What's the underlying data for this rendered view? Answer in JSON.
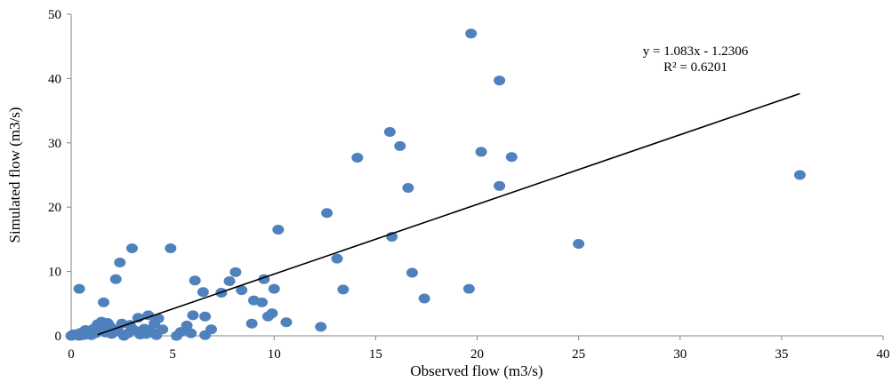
{
  "chart_data": {
    "type": "scatter",
    "xlabel": "Observed flow (m3/s)",
    "ylabel": "Simulated flow (m3/s)",
    "xlim": [
      0,
      40
    ],
    "ylim": [
      0,
      50
    ],
    "x_ticks": [
      "0",
      "5",
      "10",
      "15",
      "20",
      "25",
      "30",
      "35",
      "40"
    ],
    "y_ticks": [
      "0",
      "10",
      "20",
      "30",
      "40",
      "50"
    ],
    "grid": false,
    "marker_color": "#4f81bd",
    "trendline": {
      "slope": 1.083,
      "intercept": -1.2306,
      "x_range": [
        1.3,
        35.9
      ],
      "equation": "y = 1.083x - 1.2306",
      "r_squared": "R² = 0.6201",
      "color": "#000000"
    },
    "points": [
      [
        0.0,
        0.0
      ],
      [
        0.1,
        0.2
      ],
      [
        0.2,
        0.1
      ],
      [
        0.3,
        0.3
      ],
      [
        0.4,
        0.0
      ],
      [
        0.5,
        0.5
      ],
      [
        0.6,
        0.1
      ],
      [
        0.4,
        7.3
      ],
      [
        0.7,
        0.9
      ],
      [
        0.8,
        0.2
      ],
      [
        0.9,
        0.6
      ],
      [
        1.0,
        0.1
      ],
      [
        1.1,
        1.1
      ],
      [
        1.2,
        0.4
      ],
      [
        1.3,
        1.8
      ],
      [
        1.4,
        0.8
      ],
      [
        1.5,
        2.2
      ],
      [
        1.6,
        1.2
      ],
      [
        1.7,
        0.5
      ],
      [
        1.8,
        2.0
      ],
      [
        1.9,
        1.5
      ],
      [
        2.0,
        0.3
      ],
      [
        1.6,
        5.2
      ],
      [
        2.2,
        8.8
      ],
      [
        2.4,
        11.4
      ],
      [
        2.1,
        1.0
      ],
      [
        2.3,
        0.7
      ],
      [
        2.5,
        1.9
      ],
      [
        2.6,
        0.0
      ],
      [
        2.8,
        0.4
      ],
      [
        2.9,
        1.7
      ],
      [
        3.0,
        13.6
      ],
      [
        3.1,
        0.9
      ],
      [
        3.3,
        2.8
      ],
      [
        3.4,
        0.2
      ],
      [
        3.6,
        1.1
      ],
      [
        3.8,
        3.2
      ],
      [
        3.7,
        0.3
      ],
      [
        3.9,
        0.9
      ],
      [
        4.1,
        1.9
      ],
      [
        4.2,
        0.1
      ],
      [
        4.3,
        2.7
      ],
      [
        4.5,
        1.0
      ],
      [
        4.0,
        0.5
      ],
      [
        4.9,
        13.6
      ],
      [
        5.2,
        0.0
      ],
      [
        5.4,
        0.6
      ],
      [
        5.7,
        1.6
      ],
      [
        5.9,
        0.4
      ],
      [
        6.0,
        3.2
      ],
      [
        6.1,
        8.6
      ],
      [
        6.5,
        6.8
      ],
      [
        6.6,
        3.0
      ],
      [
        6.6,
        0.1
      ],
      [
        6.9,
        1.0
      ],
      [
        7.4,
        6.7
      ],
      [
        7.8,
        8.5
      ],
      [
        8.1,
        9.9
      ],
      [
        8.4,
        7.1
      ],
      [
        8.9,
        1.9
      ],
      [
        9.0,
        5.5
      ],
      [
        9.4,
        5.2
      ],
      [
        9.5,
        8.8
      ],
      [
        9.7,
        3.0
      ],
      [
        9.9,
        3.5
      ],
      [
        10.0,
        7.3
      ],
      [
        10.2,
        16.5
      ],
      [
        10.6,
        2.1
      ],
      [
        12.3,
        1.4
      ],
      [
        12.6,
        19.1
      ],
      [
        13.1,
        12.0
      ],
      [
        13.4,
        7.2
      ],
      [
        14.1,
        27.7
      ],
      [
        15.7,
        31.7
      ],
      [
        15.8,
        15.4
      ],
      [
        16.2,
        29.5
      ],
      [
        16.6,
        23.0
      ],
      [
        16.8,
        9.8
      ],
      [
        17.4,
        5.8
      ],
      [
        19.6,
        7.3
      ],
      [
        19.7,
        47.0
      ],
      [
        20.2,
        28.6
      ],
      [
        21.1,
        39.7
      ],
      [
        21.1,
        23.3
      ],
      [
        21.7,
        27.8
      ],
      [
        25.0,
        14.3
      ],
      [
        35.9,
        25.0
      ]
    ]
  }
}
